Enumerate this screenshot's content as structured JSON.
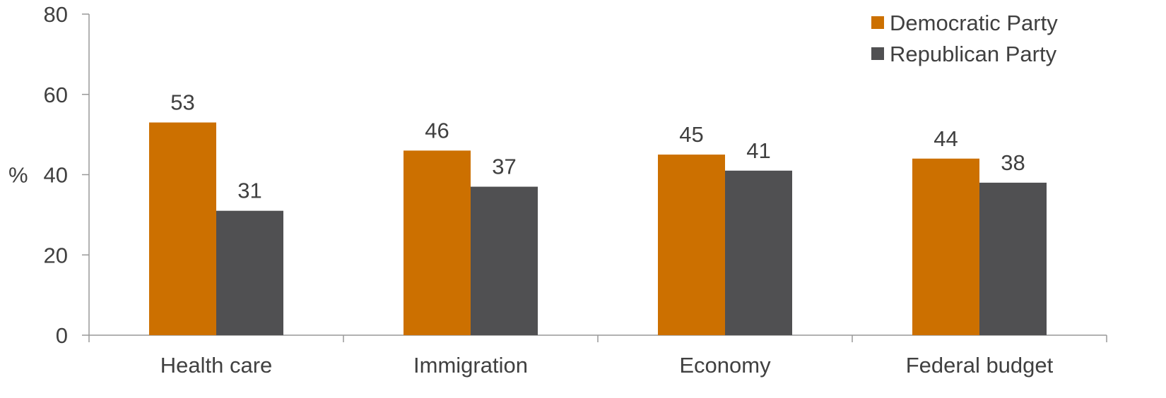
{
  "chart_data": {
    "type": "bar",
    "categories": [
      "Health care",
      "Immigration",
      "Economy",
      "Federal budget"
    ],
    "series": [
      {
        "name": "Democratic Party",
        "color": "#CC7000",
        "values": [
          53,
          46,
          45,
          44
        ]
      },
      {
        "name": "Republican Party",
        "color": "#505052",
        "values": [
          31,
          37,
          41,
          38
        ]
      }
    ],
    "ylabel": "%",
    "ylim": [
      0,
      80
    ],
    "yticks": [
      0,
      20,
      40,
      60,
      80
    ],
    "grid": false,
    "legend_position": "top-right"
  }
}
